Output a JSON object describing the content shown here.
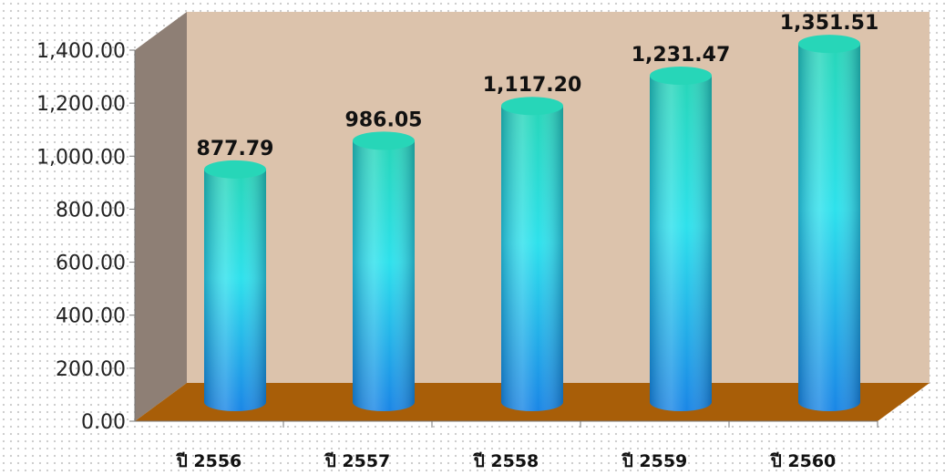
{
  "chart_data": {
    "type": "bar",
    "style": "3d-cylinder",
    "categories": [
      "ปี 2556",
      "ปี 2557",
      "ปี 2558",
      "ปี 2559",
      "ปี 2560"
    ],
    "values": [
      877.79,
      986.05,
      1117.2,
      1231.47,
      1351.51
    ],
    "data_labels": [
      "877.79",
      "986.05",
      "1,117.20",
      "1,231.47",
      "1,351.51"
    ],
    "title": "",
    "xlabel": "",
    "ylabel": "",
    "ylim": [
      0,
      1400
    ],
    "yticks": [
      "0.00",
      "200.00",
      "400.00",
      "600.00",
      "800.00",
      "1,000.00",
      "1,200.00",
      "1,400.00"
    ],
    "grid": false,
    "legend": "none"
  },
  "colors": {
    "back_wall": "#dcc3ac",
    "side_wall": "#8e7f75",
    "floor": "#a85e08",
    "bar_top": "#27d6b8",
    "bar_mid": "#2ee1ec",
    "bar_bottom": "#1a86e6"
  }
}
